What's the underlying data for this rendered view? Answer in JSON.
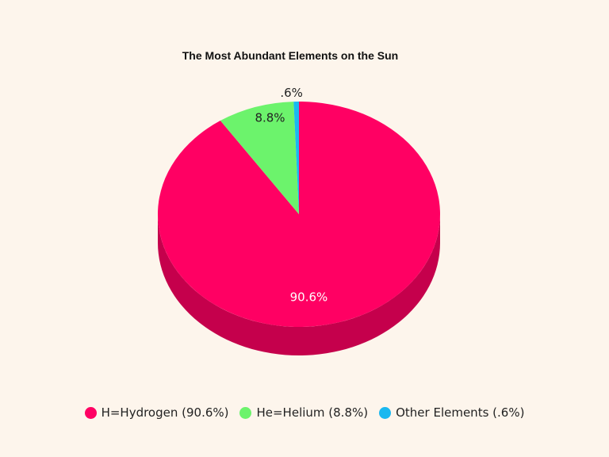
{
  "chart_data": {
    "type": "pie",
    "title": "The Most Abundant Elements on the Sun",
    "slices": [
      {
        "legend": "H=Hydrogen (90.6%)",
        "value": 90.6,
        "label": "90.6%",
        "color": "#ff0063",
        "side_color": "#c5004c",
        "label_color": "#ffffff"
      },
      {
        "legend": "He=Helium (8.8%)",
        "value": 8.8,
        "label": "8.8%",
        "color": "#6cf36c",
        "side_color": "#4cc24c",
        "label_color": "#222222"
      },
      {
        "legend": "Other Elements (.6%)",
        "value": 0.6,
        "label": ".6%",
        "color": "#1ab8f0",
        "side_color": "#0f8fbf",
        "label_color": "#222222"
      }
    ],
    "legend_position": "bottom"
  }
}
